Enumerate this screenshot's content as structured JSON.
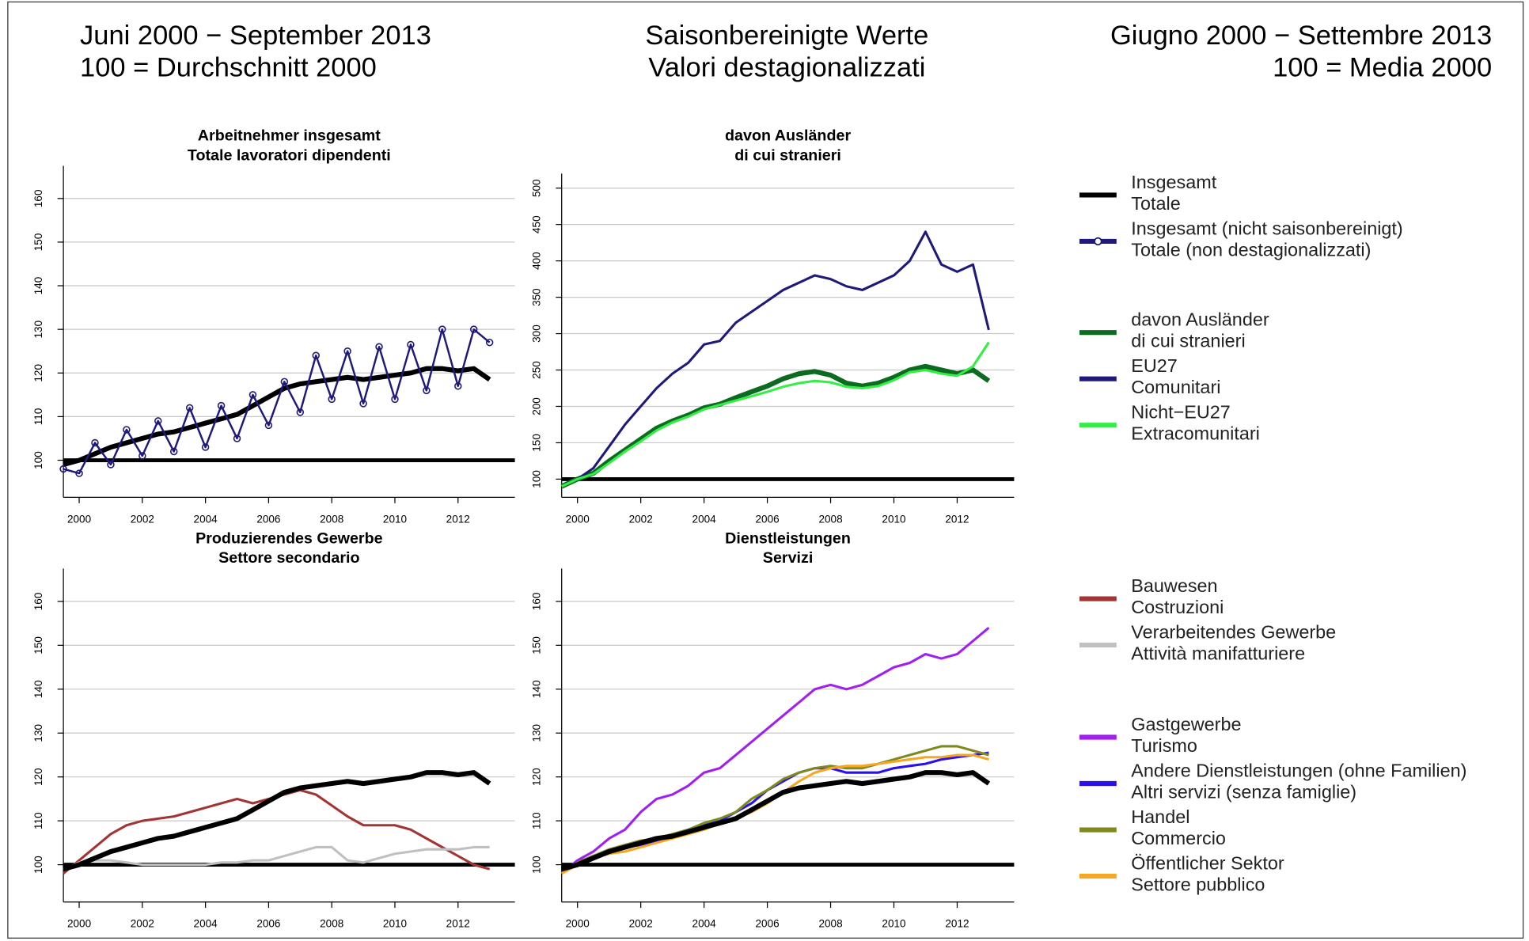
{
  "header": {
    "left": [
      "Juni 2000 − September 2013",
      "100 = Durchschnitt 2000"
    ],
    "center": [
      "Saisonbereinigte Werte",
      "Valori destagionalizzati"
    ],
    "right": [
      "Giugno 2000 − Settembre 2013",
      "100 = Media 2000"
    ]
  },
  "chart_data": [
    {
      "type": "line",
      "title": [
        "Arbeitnehmer insgesamt",
        "Totale lavoratori dipendenti"
      ],
      "x": [
        1999.5,
        2000,
        2000.5,
        2001,
        2001.5,
        2002,
        2002.5,
        2003,
        2003.5,
        2004,
        2004.5,
        2005,
        2005.5,
        2006,
        2006.5,
        2007,
        2007.5,
        2008,
        2008.5,
        2009,
        2009.5,
        2010,
        2010.5,
        2011,
        2011.5,
        2012,
        2012.5,
        2013
      ],
      "xlim": [
        1999.5,
        2013.8
      ],
      "xticks": [
        2000,
        2002,
        2004,
        2006,
        2008,
        2010,
        2012
      ],
      "ylim": [
        91.5,
        167.5
      ],
      "yticks": [
        100,
        110,
        120,
        130,
        140,
        150,
        160
      ],
      "baseline": 100,
      "grid": true,
      "series": [
        {
          "name": [
            "Insgesamt",
            "Totale"
          ],
          "color": "#000000",
          "linewidth": 5,
          "values": [
            99,
            100,
            101.5,
            103,
            104,
            105,
            106,
            106.5,
            107.5,
            108.5,
            109.5,
            110.5,
            112.5,
            114.5,
            116.5,
            117.5,
            118,
            118.5,
            119,
            118.5,
            119,
            119.5,
            120,
            121,
            121,
            120.5,
            121,
            118.5
          ]
        },
        {
          "name": [
            "Insgesamt (nicht saisonbereinigt)",
            "Totale (non destagionalizzati)"
          ],
          "color": "#1f1a7a",
          "linewidth": 2,
          "marker": "circle",
          "values": [
            98,
            97,
            104,
            99,
            107,
            101,
            109,
            102,
            112,
            103,
            112.5,
            105,
            115,
            108,
            118,
            111,
            124,
            114,
            125,
            113,
            126,
            114,
            126.5,
            116,
            130,
            117,
            130,
            127
          ]
        }
      ]
    },
    {
      "type": "line",
      "title": [
        "davon Ausländer",
        "di cui stranieri"
      ],
      "x": [
        1999.5,
        2000,
        2000.5,
        2001,
        2001.5,
        2002,
        2002.5,
        2003,
        2003.5,
        2004,
        2004.5,
        2005,
        2005.5,
        2006,
        2006.5,
        2007,
        2007.5,
        2008,
        2008.5,
        2009,
        2009.5,
        2010,
        2010.5,
        2011,
        2011.5,
        2012,
        2012.5,
        2013
      ],
      "xlim": [
        1999.5,
        2013.8
      ],
      "xticks": [
        2000,
        2002,
        2004,
        2006,
        2008,
        2010,
        2012
      ],
      "ylim": [
        75,
        520
      ],
      "yticks": [
        100,
        150,
        200,
        250,
        300,
        350,
        400,
        450,
        500
      ],
      "baseline": 100,
      "grid": true,
      "series": [
        {
          "name": [
            "davon Ausländer",
            "di cui stranieri"
          ],
          "color": "#0b6b1e",
          "linewidth": 5,
          "values": [
            90,
            100,
            108,
            125,
            140,
            155,
            170,
            180,
            188,
            198,
            203,
            212,
            220,
            228,
            238,
            245,
            248,
            243,
            232,
            228,
            232,
            240,
            250,
            255,
            250,
            245,
            250,
            235
          ]
        },
        {
          "name": [
            "EU27",
            "Comunitari"
          ],
          "color": "#1f1a7a",
          "linewidth": 2.5,
          "values": [
            90,
            100,
            115,
            145,
            175,
            200,
            225,
            245,
            260,
            285,
            290,
            315,
            330,
            345,
            360,
            370,
            380,
            375,
            365,
            360,
            370,
            380,
            400,
            440,
            395,
            385,
            395,
            305
          ]
        },
        {
          "name": [
            "Nicht−EU27",
            "Extracomunitari"
          ],
          "color": "#33ee44",
          "linewidth": 2.5,
          "values": [
            90,
            100,
            107,
            122,
            138,
            152,
            167,
            178,
            186,
            196,
            202,
            208,
            214,
            220,
            227,
            232,
            235,
            233,
            227,
            225,
            228,
            236,
            247,
            250,
            245,
            242,
            255,
            288
          ]
        }
      ]
    },
    {
      "type": "line",
      "title": [
        "Produzierendes Gewerbe",
        "Settore secondario"
      ],
      "x": [
        1999.5,
        2000,
        2000.5,
        2001,
        2001.5,
        2002,
        2002.5,
        2003,
        2003.5,
        2004,
        2004.5,
        2005,
        2005.5,
        2006,
        2006.5,
        2007,
        2007.5,
        2008,
        2008.5,
        2009,
        2009.5,
        2010,
        2010.5,
        2011,
        2011.5,
        2012,
        2012.5,
        2013
      ],
      "xlim": [
        1999.5,
        2013.8
      ],
      "xticks": [
        2000,
        2002,
        2004,
        2006,
        2008,
        2010,
        2012
      ],
      "ylim": [
        91.5,
        167.5
      ],
      "yticks": [
        100,
        110,
        120,
        130,
        140,
        150,
        160
      ],
      "baseline": 100,
      "grid": true,
      "series": [
        {
          "name": [
            "Bauwesen",
            "Costruzioni"
          ],
          "color": "#a33434",
          "linewidth": 2.5,
          "values": [
            98,
            101,
            104,
            107,
            109,
            110,
            110.5,
            111,
            112,
            113,
            114,
            115,
            114,
            115,
            116,
            117,
            116,
            113.5,
            111,
            109,
            109,
            109,
            108,
            106,
            104,
            102,
            100,
            99
          ]
        },
        {
          "name": [
            "Verarbeitendes Gewerbe",
            "Attività manifatturiere"
          ],
          "color": "#c0c0c0",
          "linewidth": 2.5,
          "values": [
            99,
            100.5,
            101,
            101,
            100.5,
            100,
            100,
            100,
            100,
            100,
            100.5,
            100.5,
            101,
            101,
            102,
            103,
            104,
            104,
            101,
            100.5,
            101.5,
            102.5,
            103,
            103.5,
            103.5,
            103.5,
            104,
            104
          ]
        },
        {
          "color": "#000000",
          "linewidth": 5,
          "values": [
            99,
            100,
            101.5,
            103,
            104,
            105,
            106,
            106.5,
            107.5,
            108.5,
            109.5,
            110.5,
            112.5,
            114.5,
            116.5,
            117.5,
            118,
            118.5,
            119,
            118.5,
            119,
            119.5,
            120,
            121,
            121,
            120.5,
            121,
            118.5
          ]
        }
      ]
    },
    {
      "type": "line",
      "title": [
        "Dienstleistungen",
        "Servizi"
      ],
      "x": [
        1999.5,
        2000,
        2000.5,
        2001,
        2001.5,
        2002,
        2002.5,
        2003,
        2003.5,
        2004,
        2004.5,
        2005,
        2005.5,
        2006,
        2006.5,
        2007,
        2007.5,
        2008,
        2008.5,
        2009,
        2009.5,
        2010,
        2010.5,
        2011,
        2011.5,
        2012,
        2012.5,
        2013
      ],
      "xlim": [
        1999.5,
        2013.8
      ],
      "xticks": [
        2000,
        2002,
        2004,
        2006,
        2008,
        2010,
        2012
      ],
      "ylim": [
        91.5,
        167.5
      ],
      "yticks": [
        100,
        110,
        120,
        130,
        140,
        150,
        160
      ],
      "baseline": 100,
      "grid": true,
      "series": [
        {
          "name": [
            "Gastgewerbe",
            "Turismo"
          ],
          "color": "#a020f0",
          "linewidth": 2.5,
          "values": [
            98,
            101,
            103,
            106,
            108,
            112,
            115,
            116,
            118,
            121,
            122,
            125,
            128,
            131,
            134,
            137,
            140,
            141,
            140,
            141,
            143,
            145,
            146,
            148,
            147,
            148,
            151,
            154
          ]
        },
        {
          "name": [
            "Andere Dienstleistungen (ohne Familien)",
            "Altri servizi (senza famiglie)"
          ],
          "color": "#2a10ee",
          "linewidth": 2.5,
          "values": [
            98,
            100.5,
            102,
            103,
            104,
            104.5,
            105.5,
            106.5,
            108,
            109,
            110,
            112,
            114,
            117,
            119,
            121,
            122,
            122,
            121,
            121,
            121,
            122,
            122.5,
            123,
            124,
            124.5,
            125,
            125.5
          ]
        },
        {
          "name": [
            "Handel",
            "Commercio"
          ],
          "color": "#7f8a1e",
          "linewidth": 2.5,
          "values": [
            98,
            100.5,
            102,
            103.5,
            104.5,
            105.5,
            106,
            107,
            108,
            109.5,
            110.5,
            112,
            115,
            117,
            119.5,
            121,
            122,
            122.5,
            122,
            122,
            123,
            124,
            125,
            126,
            127,
            127,
            126,
            125
          ]
        },
        {
          "name": [
            "Öffentlicher Sektor",
            "Settore pubblico"
          ],
          "color": "#f5a623",
          "linewidth": 2.5,
          "values": [
            98,
            100,
            101.5,
            102.5,
            103,
            104,
            105,
            106,
            107,
            108,
            109.5,
            110.5,
            112,
            114,
            116.5,
            119,
            121,
            122,
            122.5,
            122.5,
            123,
            123.5,
            124,
            124.5,
            124.5,
            125,
            125,
            124
          ]
        },
        {
          "color": "#000000",
          "linewidth": 5,
          "values": [
            99,
            100,
            101.5,
            103,
            104,
            105,
            106,
            106.5,
            107.5,
            108.5,
            109.5,
            110.5,
            112.5,
            114.5,
            116.5,
            117.5,
            118,
            118.5,
            119,
            118.5,
            119,
            119.5,
            120,
            121,
            121,
            120.5,
            121,
            118.5
          ]
        }
      ]
    }
  ]
}
